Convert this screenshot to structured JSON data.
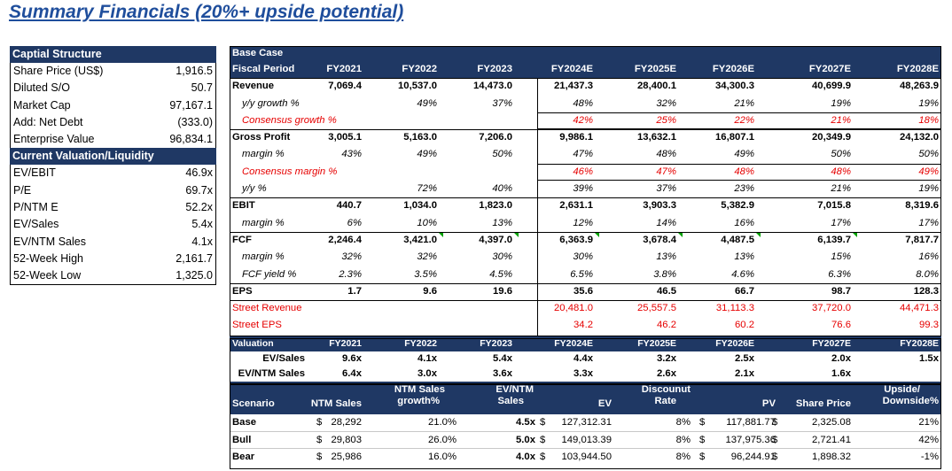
{
  "title": "Summary Financials (20%+ upside potential)",
  "capital_structure": {
    "header": "Captial Structure",
    "rows": [
      {
        "label": "Share Price (US$)",
        "value": "1,916.5"
      },
      {
        "label": "Diluted S/O",
        "value": "50.7"
      },
      {
        "label": "Market Cap",
        "value": "97,167.1"
      },
      {
        "label": "Add: Net Debt",
        "value": "(333.0)"
      },
      {
        "label": "Enterprise Value",
        "value": "96,834.1"
      }
    ]
  },
  "valuation_liquidity": {
    "header": "Current Valuation/Liquidity",
    "rows": [
      {
        "label": "EV/EBIT",
        "value": "46.9x"
      },
      {
        "label": "P/E",
        "value": "69.7x"
      },
      {
        "label": "P/NTM E",
        "value": "52.2x"
      },
      {
        "label": "EV/Sales",
        "value": "5.4x"
      },
      {
        "label": "EV/NTM Sales",
        "value": "4.1x"
      },
      {
        "label": "52-Week High",
        "value": "2,161.7"
      },
      {
        "label": "52-Week Low",
        "value": "1,325.0"
      }
    ]
  },
  "base_case": {
    "header": "Base Case",
    "period_label": "Fiscal Period",
    "periods": [
      "FY2021",
      "FY2022",
      "FY2023",
      "FY2024E",
      "FY2025E",
      "FY2026E",
      "FY2027E",
      "FY2028E"
    ],
    "rows": {
      "revenue": {
        "label": "Revenue",
        "values": [
          "7,069.4",
          "10,537.0",
          "14,473.0",
          "21,437.3",
          "28,400.1",
          "34,300.3",
          "40,699.9",
          "48,263.9"
        ]
      },
      "yy_growth": {
        "label": "y/y growth %",
        "values": [
          "",
          "49%",
          "37%",
          "48%",
          "32%",
          "21%",
          "19%",
          "19%"
        ]
      },
      "consensus_growth": {
        "label": "Consensus growth %",
        "values": [
          "",
          "",
          "",
          "42%",
          "25%",
          "22%",
          "21%",
          "18%"
        ]
      },
      "gross_profit": {
        "label": "Gross Profit",
        "values": [
          "3,005.1",
          "5,163.0",
          "7,206.0",
          "9,986.1",
          "13,632.1",
          "16,807.1",
          "20,349.9",
          "24,132.0"
        ]
      },
      "gross_margin": {
        "label": "margin %",
        "values": [
          "43%",
          "49%",
          "50%",
          "47%",
          "48%",
          "49%",
          "50%",
          "50%"
        ]
      },
      "consensus_margin": {
        "label": "Consensus margin %",
        "values": [
          "",
          "",
          "",
          "46%",
          "47%",
          "48%",
          "48%",
          "49%"
        ]
      },
      "gp_yy": {
        "label": "y/y %",
        "values": [
          "",
          "72%",
          "40%",
          "39%",
          "37%",
          "23%",
          "21%",
          "19%"
        ]
      },
      "ebit": {
        "label": "EBIT",
        "values": [
          "440.7",
          "1,034.0",
          "1,823.0",
          "2,631.1",
          "3,903.3",
          "5,382.9",
          "7,015.8",
          "8,319.6"
        ]
      },
      "ebit_margin": {
        "label": "margin %",
        "values": [
          "6%",
          "10%",
          "13%",
          "12%",
          "14%",
          "16%",
          "17%",
          "17%"
        ]
      },
      "fcf": {
        "label": "FCF",
        "values": [
          "2,246.4",
          "3,421.0",
          "4,397.0",
          "6,363.9",
          "3,678.4",
          "4,487.5",
          "6,139.7",
          "7,817.7"
        ]
      },
      "fcf_margin": {
        "label": "margin %",
        "values": [
          "32%",
          "32%",
          "30%",
          "30%",
          "13%",
          "13%",
          "15%",
          "16%"
        ]
      },
      "fcf_yield": {
        "label": "FCF yield %",
        "values": [
          "2.3%",
          "3.5%",
          "4.5%",
          "6.5%",
          "3.8%",
          "4.6%",
          "6.3%",
          "8.0%"
        ]
      },
      "eps": {
        "label": "EPS",
        "values": [
          "1.7",
          "9.6",
          "19.6",
          "35.6",
          "46.5",
          "66.7",
          "98.7",
          "128.3"
        ]
      },
      "street_revenue": {
        "label": "Street Revenue",
        "values": [
          "",
          "",
          "",
          "20,481.0",
          "25,557.5",
          "31,113.3",
          "37,720.0",
          "44,471.3"
        ]
      },
      "street_eps": {
        "label": "Street EPS",
        "values": [
          "",
          "",
          "",
          "34.2",
          "46.2",
          "60.2",
          "76.6",
          "99.3"
        ]
      }
    }
  },
  "valuation": {
    "header": "Valuation",
    "periods": [
      "FY2021",
      "FY2022",
      "FY2023",
      "FY2024E",
      "FY2025E",
      "FY2026E",
      "FY2027E",
      "FY2028E"
    ],
    "ev_sales": {
      "label": "EV/Sales",
      "values": [
        "9.6x",
        "4.1x",
        "5.4x",
        "4.4x",
        "3.2x",
        "2.5x",
        "2.0x",
        "1.5x"
      ]
    },
    "ev_ntm_sales": {
      "label": "EV/NTM Sales",
      "values": [
        "6.4x",
        "3.0x",
        "3.6x",
        "3.3x",
        "2.6x",
        "2.1x",
        "1.6x"
      ]
    }
  },
  "scenarios": {
    "headers": {
      "scenario": "Scenario",
      "ntm_sales": "NTM Sales",
      "ntm_growth_1": "NTM Sales",
      "ntm_growth_2": "growth%",
      "ev_ntm_1": "EV/NTM",
      "ev_ntm_2": "Sales",
      "ev": "EV",
      "discount_1": "Discounut",
      "discount_2": "Rate",
      "pv": "PV",
      "share_price": "Share Price",
      "upside_1": "Upside/",
      "upside_2": "Downside%"
    },
    "currency": "$",
    "rows": [
      {
        "name": "Base",
        "ntm_sales": "28,292",
        "growth": "21.0%",
        "ev_ntm": "4.5x",
        "ev": "127,312.31",
        "rate": "8%",
        "pv": "117,881.77",
        "price": "2,325.08",
        "upside": "21%"
      },
      {
        "name": "Bull",
        "ntm_sales": "29,803",
        "growth": "26.0%",
        "ev_ntm": "5.0x",
        "ev": "149,013.39",
        "rate": "8%",
        "pv": "137,975.36",
        "price": "2,721.41",
        "upside": "42%"
      },
      {
        "name": "Bear",
        "ntm_sales": "25,986",
        "growth": "16.0%",
        "ev_ntm": "4.0x",
        "ev": "103,944.50",
        "rate": "8%",
        "pv": "96,244.91",
        "price": "1,898.32",
        "upside": "-1%"
      }
    ]
  }
}
